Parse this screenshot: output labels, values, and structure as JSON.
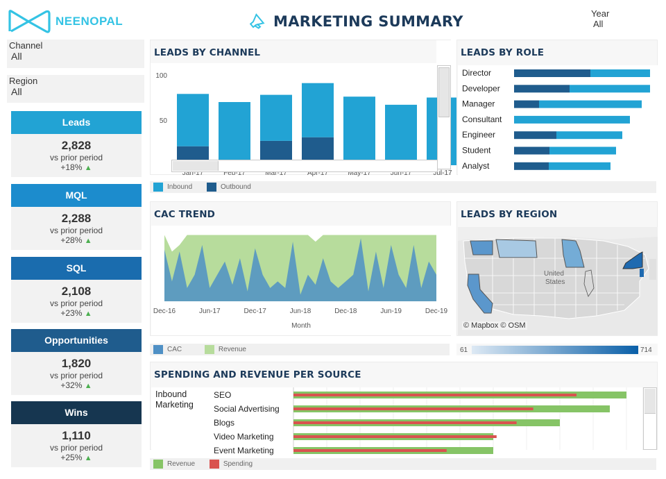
{
  "header": {
    "brand": "NEENOPAL",
    "title": "MARKETING SUMMARY",
    "year_label": "Year",
    "year_value": "All"
  },
  "filters": {
    "channel": {
      "label": "Channel",
      "value": "All"
    },
    "region": {
      "label": "Region",
      "value": "All"
    }
  },
  "kpis": [
    {
      "title": "Leads",
      "value": "2,828",
      "sub": "vs prior period",
      "delta": "+18%",
      "color": "#22a3d4"
    },
    {
      "title": "MQL",
      "value": "2,288",
      "sub": "vs prior period",
      "delta": "+28%",
      "color": "#1c8ccd"
    },
    {
      "title": "SQL",
      "value": "2,108",
      "sub": "vs prior period",
      "delta": "+23%",
      "color": "#1a6cae"
    },
    {
      "title": "Opportunities",
      "value": "1,820",
      "sub": "vs prior period",
      "delta": "+32%",
      "color": "#1f5c8d"
    },
    {
      "title": "Wins",
      "value": "1,110",
      "sub": "vs prior period",
      "delta": "+25%",
      "color": "#163650"
    }
  ],
  "leads_by_channel": {
    "title": "LEADS BY CHANNEL",
    "legend": [
      "Inbound",
      "Outbound"
    ],
    "chart_data": {
      "type": "bar",
      "categories": [
        "Jan-17",
        "Feb-17",
        "Mar-17",
        "Apr-17",
        "May-17",
        "Jun-17",
        "Jul-17"
      ],
      "series": [
        {
          "name": "Outbound",
          "values": [
            21,
            0,
            27,
            31,
            0,
            0,
            0
          ]
        },
        {
          "name": "Inbound",
          "values": [
            58,
            70,
            51,
            60,
            76,
            67,
            75
          ]
        }
      ],
      "yticks": [
        50,
        100
      ],
      "ylim": [
        0,
        110
      ],
      "stacked": true,
      "colors": {
        "Inbound": "#22a3d4",
        "Outbound": "#1f5c8d"
      }
    }
  },
  "leads_by_role": {
    "title": "LEADS BY ROLE",
    "chart_data": {
      "type": "bar",
      "orientation": "horizontal",
      "categories": [
        "Director",
        "Developer",
        "Manager",
        "Consultant",
        "Engineer",
        "Student",
        "Analyst"
      ],
      "series": [
        {
          "name": "Outbound",
          "values": [
            110,
            80,
            36,
            0,
            61,
            51,
            50
          ]
        },
        {
          "name": "Inbound",
          "values": [
            86,
            116,
            148,
            167,
            95,
            96,
            89
          ]
        }
      ],
      "colors": {
        "Inbound": "#22a3d4",
        "Outbound": "#1f5c8d"
      }
    }
  },
  "cac_trend": {
    "title": "CAC TREND",
    "xlabel": "Month",
    "legend": [
      "CAC",
      "Revenue"
    ],
    "chart_data": {
      "type": "area",
      "x": [
        "Dec-16",
        "Jan-17",
        "Feb-17",
        "Mar-17",
        "Apr-17",
        "May-17",
        "Jun-17",
        "Jul-17",
        "Aug-17",
        "Sep-17",
        "Oct-17",
        "Nov-17",
        "Dec-17",
        "Jan-18",
        "Feb-18",
        "Mar-18",
        "Apr-18",
        "May-18",
        "Jun-18",
        "Jul-18",
        "Aug-18",
        "Sep-18",
        "Oct-18",
        "Nov-18",
        "Dec-18",
        "Jan-19",
        "Feb-19",
        "Mar-19",
        "Apr-19",
        "May-19",
        "Jun-19",
        "Jul-19",
        "Aug-19",
        "Sep-19",
        "Oct-19",
        "Nov-19",
        "Dec-19"
      ],
      "xticks": [
        "Dec-16",
        "Jun-17",
        "Dec-17",
        "Jun-18",
        "Dec-18",
        "Jun-19",
        "Dec-19"
      ],
      "series": [
        {
          "name": "Revenue",
          "values": [
            100,
            75,
            85,
            100,
            100,
            100,
            100,
            100,
            100,
            100,
            100,
            100,
            100,
            100,
            100,
            100,
            100,
            100,
            100,
            100,
            90,
            100,
            100,
            100,
            100,
            100,
            100,
            100,
            100,
            100,
            100,
            100,
            100,
            100,
            100,
            100,
            100
          ]
        },
        {
          "name": "CAC",
          "values": [
            78,
            30,
            75,
            20,
            40,
            85,
            20,
            40,
            60,
            25,
            65,
            15,
            80,
            40,
            20,
            30,
            20,
            90,
            10,
            40,
            25,
            65,
            30,
            20,
            30,
            40,
            95,
            15,
            75,
            20,
            85,
            40,
            20,
            85,
            20,
            60,
            40
          ]
        }
      ],
      "ylim": [
        0,
        110
      ],
      "colors": {
        "CAC": "#4f90c5",
        "Revenue": "#b7dc9c"
      }
    }
  },
  "leads_by_region": {
    "title": "LEADS BY REGION",
    "map_label": "United\nStates",
    "attribution": "© Mapbox © OSM",
    "scale_min": "61",
    "scale_max": "714"
  },
  "spending": {
    "title": "SPENDING AND REVENUE PER SOURCE",
    "group": "Inbound Marketing",
    "legend": [
      "Revenue",
      "Spending"
    ],
    "chart_data": {
      "type": "bar",
      "orientation": "horizontal",
      "categories": [
        "SEO",
        "Social Advertising",
        "Blogs",
        "Video Marketing",
        "Event Marketing"
      ],
      "series": [
        {
          "name": "Revenue",
          "values": [
            100,
            95,
            80,
            60,
            60
          ]
        },
        {
          "name": "Spending",
          "values": [
            85,
            72,
            67,
            61,
            46
          ]
        }
      ],
      "colors": {
        "Revenue": "#86c466",
        "Spending": "#d9534f"
      }
    }
  }
}
